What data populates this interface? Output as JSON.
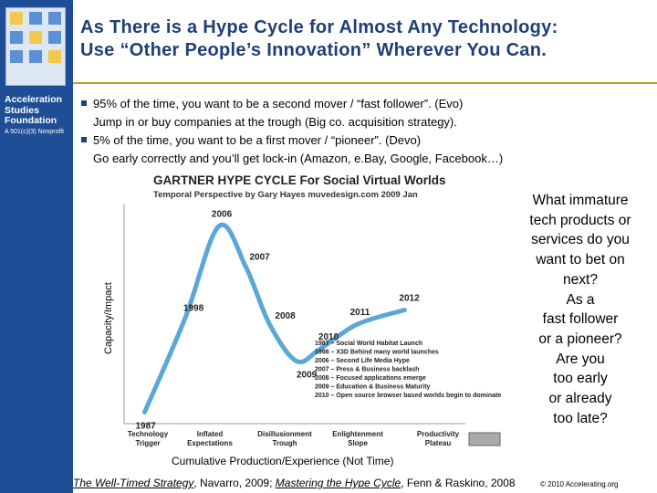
{
  "org": {
    "name_lines": [
      "Acceleration",
      "Studies",
      "Foundation"
    ],
    "subtitle": "A 501(c)(3) Nonprofit"
  },
  "title": {
    "line1": "As There is a Hype Cycle for Almost Any Technology:",
    "line2": "Use “Other People’s Innovation” Wherever You Can."
  },
  "bullets": [
    {
      "line1": "95% of the time, you want to be a second mover / “fast follower”. (Evo)",
      "line2": "Jump in or buy companies at the trough (Big co. acquisition strategy)."
    },
    {
      "line1": "5% of the time, you want to be a first mover / “pioneer”. (Devo)",
      "line2": "Go early correctly and you’ll get lock-in (Amazon, e.Bay, Google, Facebook…)"
    }
  ],
  "chart_data": {
    "type": "line",
    "title": "GARTNER HYPE CYCLE For Social Virtual Worlds",
    "subtitle": "Temporal Perspective by Gary Hayes muvedesign.com 2009 Jan",
    "xlabel": "Cumulative Production/Experience (Not Time)",
    "ylabel": "Capacity/Impact",
    "phases": [
      "Technology Trigger",
      "Inflated Expectations",
      "Disillusionment Trough",
      "Enlightenment Slope",
      "Productivity Plateau"
    ],
    "points": [
      {
        "year": "1987",
        "x": 0.05,
        "y": 0.02
      },
      {
        "year": "1998",
        "x": 0.17,
        "y": 0.48
      },
      {
        "year": "2006",
        "x": 0.27,
        "y": 0.93
      },
      {
        "year": "2007",
        "x": 0.35,
        "y": 0.73
      },
      {
        "year": "2008",
        "x": 0.42,
        "y": 0.45
      },
      {
        "year": "2009",
        "x": 0.5,
        "y": 0.27
      },
      {
        "year": "2010",
        "x": 0.57,
        "y": 0.33
      },
      {
        "year": "2011",
        "x": 0.68,
        "y": 0.45
      },
      {
        "year": "2012",
        "x": 0.82,
        "y": 0.52
      }
    ],
    "legend": [
      "1987 – Social World Habitat Launch",
      "1998 – X3D Behind many world launches",
      "2006 – Second Life Media Hype",
      "2007 – Press & Business backlash",
      "2008 – Focused applications emerge",
      "2009 – Education & Business Maturity",
      "2010 – Open source browser based worlds begin to dominate"
    ],
    "line_color": "#5aa7d8"
  },
  "side_text": "What immature\ntech products or\nservices do you\nwant to bet on\nnext?\nAs a\nfast follower\nor a pioneer?\nAre you\ntoo early\nor already\ntoo late?",
  "citation": {
    "ref1": "The Well-Timed Strategy",
    "ref1_tail": ", Navarro, 2009; ",
    "ref2": "Mastering the Hype Cycle",
    "ref2_tail": ", Fenn & Raskino, 2008"
  },
  "copyright": "© 2010 Accelerating.org",
  "colors": {
    "sidebar": "#1f4e96",
    "title": "#1f3f79",
    "rule": "#c79b2b"
  }
}
